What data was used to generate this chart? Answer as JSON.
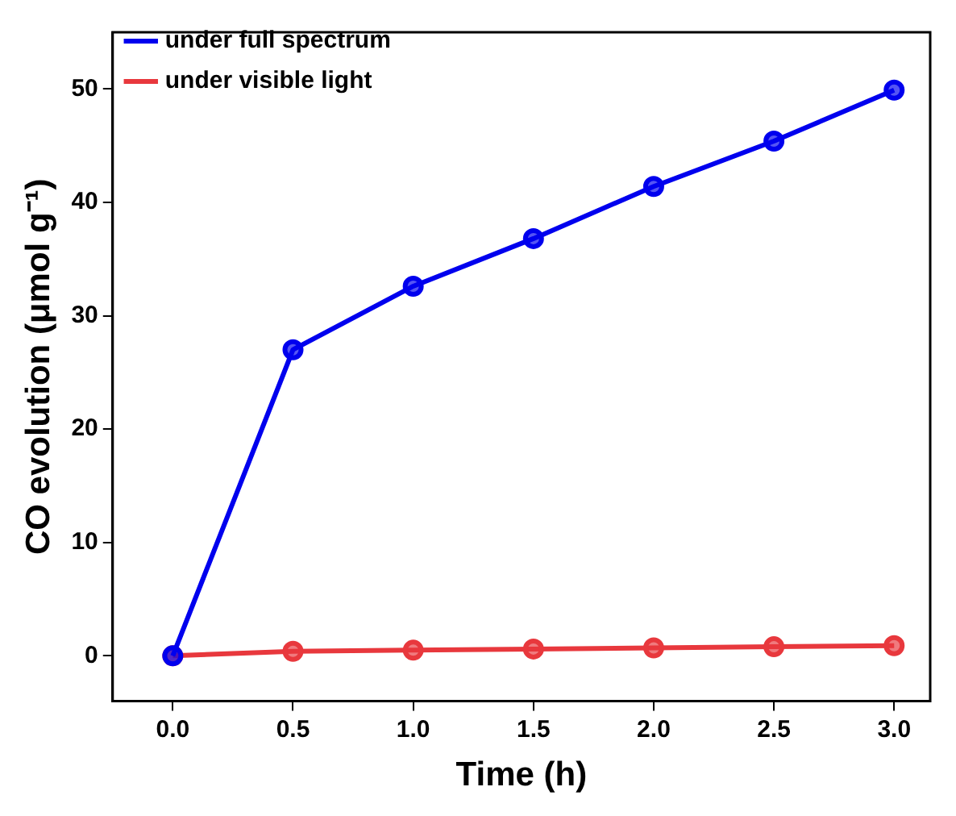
{
  "chart_data": {
    "type": "line",
    "xlabel": "Time (h)",
    "ylabel": "CO evolution (μmol g⁻¹)",
    "x": [
      0,
      0.5,
      1,
      1.5,
      2,
      2.5,
      3
    ],
    "series": [
      {
        "name": "under full spectrum",
        "color": "#0000ee",
        "values": [
          0,
          27,
          32.6,
          36.8,
          41.4,
          45.4,
          49.9
        ]
      },
      {
        "name": "under visible light",
        "color": "#e8383d",
        "values": [
          0,
          0.4,
          0.5,
          0.6,
          0.7,
          0.8,
          0.9
        ]
      }
    ],
    "xlim": [
      -0.25,
      3.15
    ],
    "xticks": [
      {
        "value": 0,
        "label": "0.0"
      },
      {
        "value": 0.5,
        "label": "0.5"
      },
      {
        "value": 1,
        "label": "1.0"
      },
      {
        "value": 1.5,
        "label": "1.5"
      },
      {
        "value": 2,
        "label": "2.0"
      },
      {
        "value": 2.5,
        "label": "2.5"
      },
      {
        "value": 3,
        "label": "3.0"
      }
    ],
    "ylim": [
      -4,
      55
    ],
    "yticks": [
      0,
      10,
      20,
      30,
      40,
      50
    ],
    "grid": false,
    "legend": "top left",
    "marker": "circle",
    "line_style": "solid"
  }
}
